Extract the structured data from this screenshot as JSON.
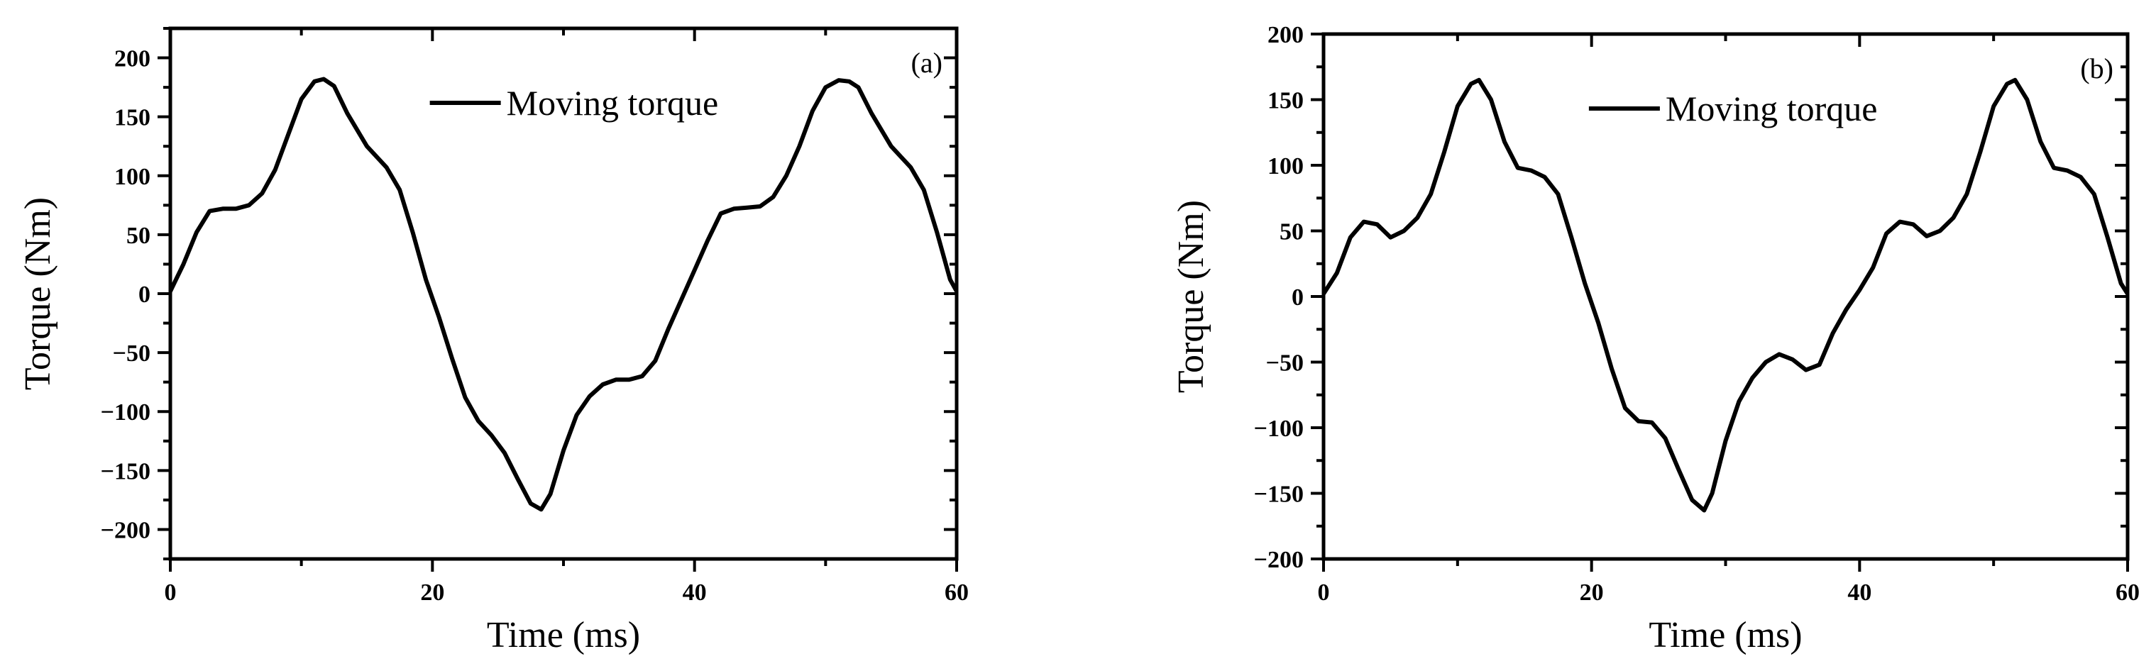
{
  "chart_data": [
    {
      "type": "line",
      "panel_label": "(a)",
      "xlabel": "Time (ms)",
      "ylabel": "Torque (Nm)",
      "xlim": [
        0,
        60
      ],
      "ylim": [
        -225,
        225
      ],
      "xticks": [
        0,
        20,
        40,
        60
      ],
      "yticks": [
        -200,
        -150,
        -100,
        -50,
        0,
        50,
        100,
        150,
        200
      ],
      "legend": "top-right",
      "series": [
        {
          "name": "Moving torque",
          "color": "#000000",
          "x": [
            0,
            1,
            2,
            3,
            4,
            5,
            6,
            7,
            8,
            9,
            10,
            11,
            11.7,
            12.5,
            13.5,
            15,
            16.5,
            17.5,
            18.5,
            19.5,
            20.5,
            21.5,
            22.5,
            23.5,
            24.5,
            25.5,
            26.5,
            27.5,
            28.3,
            29,
            30,
            31,
            32,
            33,
            34,
            35,
            36,
            37,
            38,
            39,
            40,
            41,
            42,
            43,
            44,
            45,
            46,
            47,
            48,
            49,
            50,
            51,
            51.8,
            52.5,
            53.5,
            55,
            56.5,
            57.5,
            58.5,
            59.5,
            60
          ],
          "y": [
            2,
            25,
            52,
            70,
            72,
            72,
            75,
            85,
            105,
            135,
            165,
            180,
            182,
            176,
            153,
            125,
            107,
            88,
            52,
            12,
            -20,
            -55,
            -88,
            -108,
            -120,
            -135,
            -157,
            -178,
            -183,
            -170,
            -133,
            -103,
            -87,
            -77,
            -73,
            -73,
            -70,
            -57,
            -30,
            -5,
            20,
            45,
            68,
            72,
            73,
            74,
            82,
            100,
            125,
            155,
            175,
            181,
            180,
            175,
            153,
            125,
            107,
            88,
            52,
            12,
            2
          ]
        }
      ]
    },
    {
      "type": "line",
      "panel_label": "(b)",
      "xlabel": "Time (ms)",
      "ylabel": "Torque (Nm)",
      "xlim": [
        0,
        60
      ],
      "ylim": [
        -200,
        200
      ],
      "xticks": [
        0,
        20,
        40,
        60
      ],
      "yticks": [
        -200,
        -150,
        -100,
        -50,
        0,
        50,
        100,
        150,
        200
      ],
      "legend": "top-right",
      "series": [
        {
          "name": "Moving torque",
          "color": "#000000",
          "x": [
            0,
            1,
            2,
            3,
            4,
            5,
            6,
            7,
            8,
            9,
            10,
            11,
            11.6,
            12.5,
            13.5,
            14.5,
            15.5,
            16.5,
            17.5,
            18.5,
            19.5,
            20.5,
            21.5,
            22.5,
            23.5,
            24.5,
            25.5,
            26.5,
            27.5,
            28.4,
            29,
            30,
            31,
            32,
            33,
            34,
            35,
            36,
            37,
            38,
            39,
            40,
            41,
            42,
            43,
            44,
            45,
            46,
            47,
            48,
            49,
            50,
            51,
            51.6,
            52.5,
            53.5,
            54.5,
            55.5,
            56.5,
            57.5,
            58.5,
            59.5,
            60
          ],
          "y": [
            2,
            18,
            45,
            57,
            55,
            45,
            50,
            60,
            78,
            110,
            145,
            162,
            165,
            150,
            118,
            98,
            96,
            91,
            78,
            45,
            10,
            -20,
            -55,
            -85,
            -95,
            -96,
            -108,
            -132,
            -155,
            -163,
            -150,
            -110,
            -80,
            -62,
            -50,
            -44,
            -48,
            -56,
            -52,
            -28,
            -10,
            5,
            22,
            48,
            57,
            55,
            46,
            50,
            60,
            78,
            110,
            145,
            162,
            165,
            150,
            118,
            98,
            96,
            91,
            78,
            45,
            10,
            2
          ]
        }
      ]
    }
  ]
}
